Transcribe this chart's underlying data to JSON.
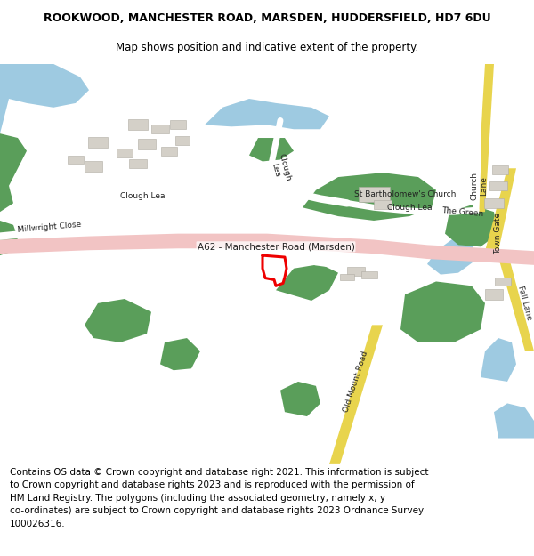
{
  "title_line1": "ROOKWOOD, MANCHESTER ROAD, MARSDEN, HUDDERSFIELD, HD7 6DU",
  "title_line2": "Map shows position and indicative extent of the property.",
  "copyright_text": "Contains OS data © Crown copyright and database right 2021. This information is subject\nto Crown copyright and database rights 2023 and is reproduced with the permission of\nHM Land Registry. The polygons (including the associated geometry, namely x, y\nco-ordinates) are subject to Crown copyright and database rights 2023 Ordnance Survey\n100026316.",
  "title_fontsize": 9.0,
  "subtitle_fontsize": 8.5,
  "copyright_fontsize": 7.5,
  "map_bg": "#f0ece3",
  "road_pink": "#f2c4c4",
  "road_yellow": "#e8d44d",
  "road_white": "#ffffff",
  "green_color": "#5a9e5a",
  "water_blue": "#9ecae1",
  "building_gray": "#d4d0c8",
  "red_outline": "#ee0000",
  "white": "#ffffff",
  "gray_road": "#e8e4dc",
  "light_blue_water": "#c6e2f0"
}
